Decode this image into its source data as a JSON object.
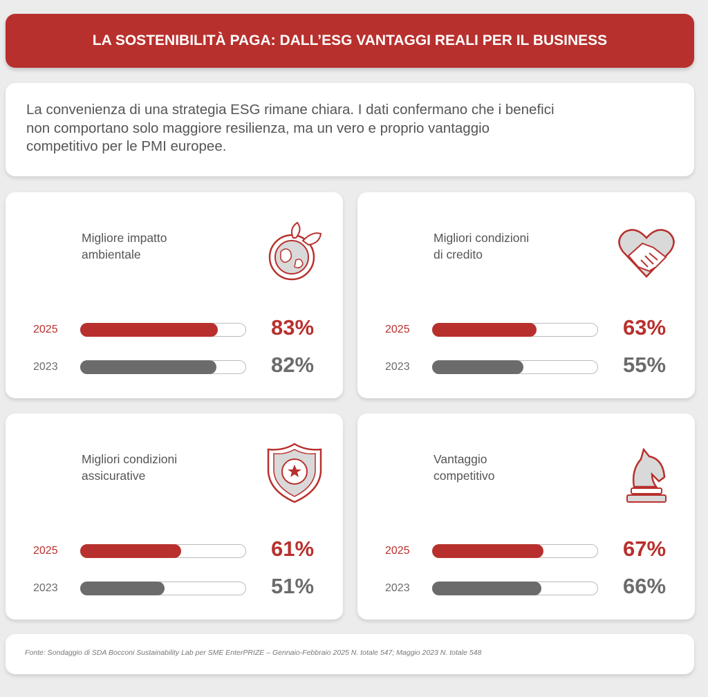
{
  "header": {
    "title": "LA SOSTENIBILITÀ PAGA: DALL’ESG VANTAGGI REALI PER IL BUSINESS"
  },
  "intro": {
    "lines": [
      "La convenienza di una strategia ESG rimane chiara. I dati confermano che i benefici",
      "non comportano solo maggiore resilienza, ma un vero e proprio vantaggio",
      "competitivo per le PMI europee."
    ]
  },
  "xlim": [
    0,
    100
  ],
  "cards": [
    {
      "title_lines": [
        "Migliore impatto",
        "ambientale"
      ],
      "icon": "globe",
      "rows": [
        {
          "year": "2025",
          "value": 83,
          "value_label": "83%",
          "color": "#b8302d"
        },
        {
          "year": "2023",
          "value": 82,
          "value_label": "82%",
          "color": "#6b6b6b"
        }
      ]
    },
    {
      "title_lines": [
        "Migliori condizioni",
        "di credito"
      ],
      "icon": "heart",
      "rows": [
        {
          "year": "2025",
          "value": 63,
          "value_label": "63%",
          "color": "#b8302d"
        },
        {
          "year": "2023",
          "value": 55,
          "value_label": "55%",
          "color": "#6b6b6b"
        }
      ]
    },
    {
      "title_lines": [
        "Migliori condizioni",
        "assicurative"
      ],
      "icon": "shield",
      "rows": [
        {
          "year": "2025",
          "value": 61,
          "value_label": "61%",
          "color": "#b8302d"
        },
        {
          "year": "2023",
          "value": 51,
          "value_label": "51%",
          "color": "#6b6b6b"
        }
      ]
    },
    {
      "title_lines": [
        "Vantaggio",
        "competitivo"
      ],
      "icon": "knight",
      "rows": [
        {
          "year": "2025",
          "value": 67,
          "value_label": "67%",
          "color": "#b8302d"
        },
        {
          "year": "2023",
          "value": 66,
          "value_label": "66%",
          "color": "#6b6b6b"
        }
      ]
    }
  ],
  "footer": {
    "source": "Fonte: Sondaggio di SDA Bocconi Sustainability Lab per SME EnterPRIZE – Gennaio-Febbraio 2025 N. totale 547; Maggio 2023 N. totale 548"
  }
}
